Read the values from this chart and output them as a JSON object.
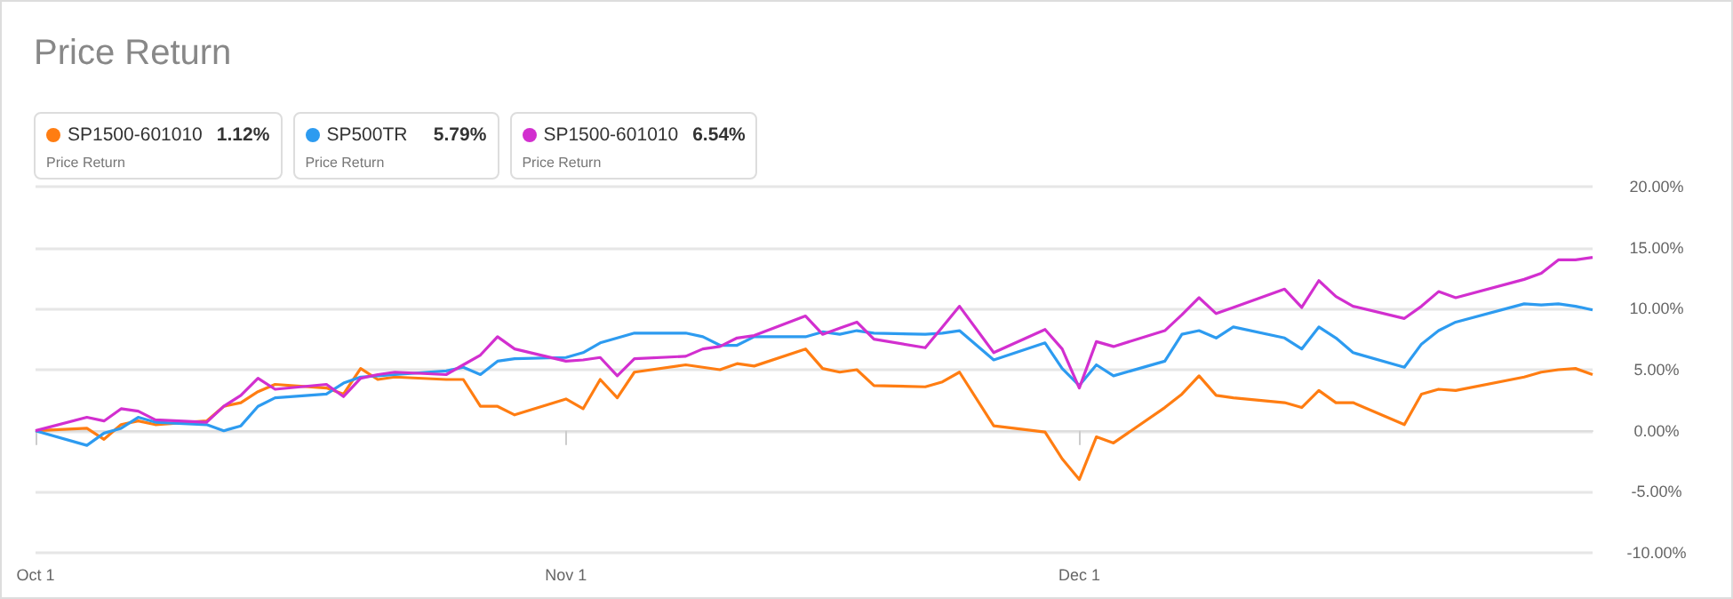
{
  "chart_data": {
    "type": "line",
    "title": "Price Return",
    "x": [
      "--10-01",
      "--10-04",
      "--10-05",
      "--10-06",
      "--10-07",
      "--10-08",
      "--10-11",
      "--10-12",
      "--10-13",
      "--10-14",
      "--10-15",
      "--10-18",
      "--10-19",
      "--10-20",
      "--10-21",
      "--10-22",
      "--10-25",
      "--10-26",
      "--10-27",
      "--10-28",
      "--10-29",
      "--11-01",
      "--11-02",
      "--11-03",
      "--11-04",
      "--11-05",
      "--11-08",
      "--11-09",
      "--11-10",
      "--11-11",
      "--11-12",
      "--11-15",
      "--11-16",
      "--11-17",
      "--11-18",
      "--11-19",
      "--11-22",
      "--11-23",
      "--11-24",
      "--11-26",
      "--11-29",
      "--11-30",
      "--12-01",
      "--12-02",
      "--12-03",
      "--12-06",
      "--12-07",
      "--12-08",
      "--12-09",
      "--12-10",
      "--12-13",
      "--12-14",
      "--12-15",
      "--12-16",
      "--12-17",
      "--12-20",
      "--12-21",
      "--12-22",
      "--12-23",
      "--12-27",
      "--12-28",
      "--12-29",
      "--12-30",
      "--12-31"
    ],
    "series": [
      {
        "name": "SP1500-601010",
        "color": "#ff7d12",
        "values": [
          0,
          0.2,
          -0.7,
          0.5,
          0.8,
          0.5,
          0.8,
          2.0,
          2.3,
          3.2,
          3.8,
          3.5,
          3.0,
          5.1,
          4.2,
          4.4,
          4.2,
          4.2,
          2.0,
          2.0,
          1.3,
          2.6,
          1.8,
          4.2,
          2.7,
          4.8,
          5.4,
          5.2,
          5.0,
          5.5,
          5.3,
          6.7,
          5.1,
          4.8,
          5.0,
          3.7,
          3.6,
          4.0,
          4.8,
          0.4,
          -0.1,
          -2.3,
          -4.0,
          -0.5,
          -1.0,
          1.9,
          3.0,
          4.5,
          2.9,
          2.7,
          2.3,
          1.9,
          3.3,
          2.3,
          2.3,
          0.5,
          3.0,
          3.4,
          3.3,
          4.4,
          4.8,
          5.0,
          5.1,
          4.6
        ]
      },
      {
        "name": "SP500TR",
        "color": "#2d9bf0",
        "values": [
          0,
          -1.2,
          -0.2,
          0.2,
          1.1,
          0.7,
          0.5,
          0,
          0.4,
          2.0,
          2.7,
          3.0,
          3.9,
          4.4,
          4.5,
          4.6,
          4.9,
          5.2,
          4.6,
          5.7,
          5.9,
          6.0,
          6.4,
          7.2,
          7.6,
          8.0,
          8.0,
          7.7,
          7.0,
          7.0,
          7.7,
          7.7,
          8.1,
          7.9,
          8.2,
          8.0,
          7.9,
          8.0,
          8.2,
          5.8,
          7.2,
          5.1,
          3.7,
          5.4,
          4.5,
          5.7,
          7.9,
          8.2,
          7.6,
          8.5,
          7.6,
          6.7,
          8.5,
          7.6,
          6.4,
          5.2,
          7.1,
          8.2,
          8.9,
          10.4,
          10.3,
          10.4,
          10.2,
          9.9
        ]
      },
      {
        "name": "SP1500-601010",
        "color": "#d22fcf",
        "values": [
          0,
          1.1,
          0.8,
          1.8,
          1.6,
          0.9,
          0.7,
          2.0,
          2.9,
          4.3,
          3.4,
          3.8,
          2.8,
          4.3,
          4.6,
          4.8,
          4.6,
          5.4,
          6.2,
          7.7,
          6.7,
          5.7,
          5.8,
          6.0,
          4.5,
          5.9,
          6.1,
          6.7,
          6.9,
          7.6,
          7.8,
          9.4,
          7.9,
          8.4,
          8.9,
          7.5,
          6.8,
          8.5,
          10.2,
          6.4,
          8.3,
          6.7,
          3.5,
          7.3,
          6.9,
          8.2,
          9.5,
          10.9,
          9.6,
          10.1,
          11.6,
          10.1,
          12.3,
          11.0,
          10.2,
          9.2,
          10.2,
          11.4,
          10.9,
          12.4,
          12.9,
          14.0,
          14.0,
          14.2
        ]
      }
    ],
    "xlim": [
      "--10-01",
      "--12-31"
    ],
    "xticks": [
      {
        "value": "--10-01",
        "label": "Oct 1"
      },
      {
        "value": "--11-01",
        "label": "Nov 1"
      },
      {
        "value": "--12-01",
        "label": "Dec 1"
      }
    ],
    "ylim": [
      -10,
      20
    ],
    "yticks": [
      {
        "value": -10,
        "label": "-10.00%"
      },
      {
        "value": -5,
        "label": "-5.00%"
      },
      {
        "value": 0,
        "label": "0.00%"
      },
      {
        "value": 5,
        "label": "5.00%"
      },
      {
        "value": 10,
        "label": "10.00%"
      },
      {
        "value": 15,
        "label": "15.00%"
      },
      {
        "value": 20,
        "label": "20.00%"
      }
    ],
    "annotations": [
      "1.12%",
      "5.79%",
      "6.54%",
      "Price Return",
      "Price Return",
      "Price Return"
    ],
    "grid": "y",
    "legend": "top left",
    "marker": "none",
    "line_style": "solid"
  }
}
